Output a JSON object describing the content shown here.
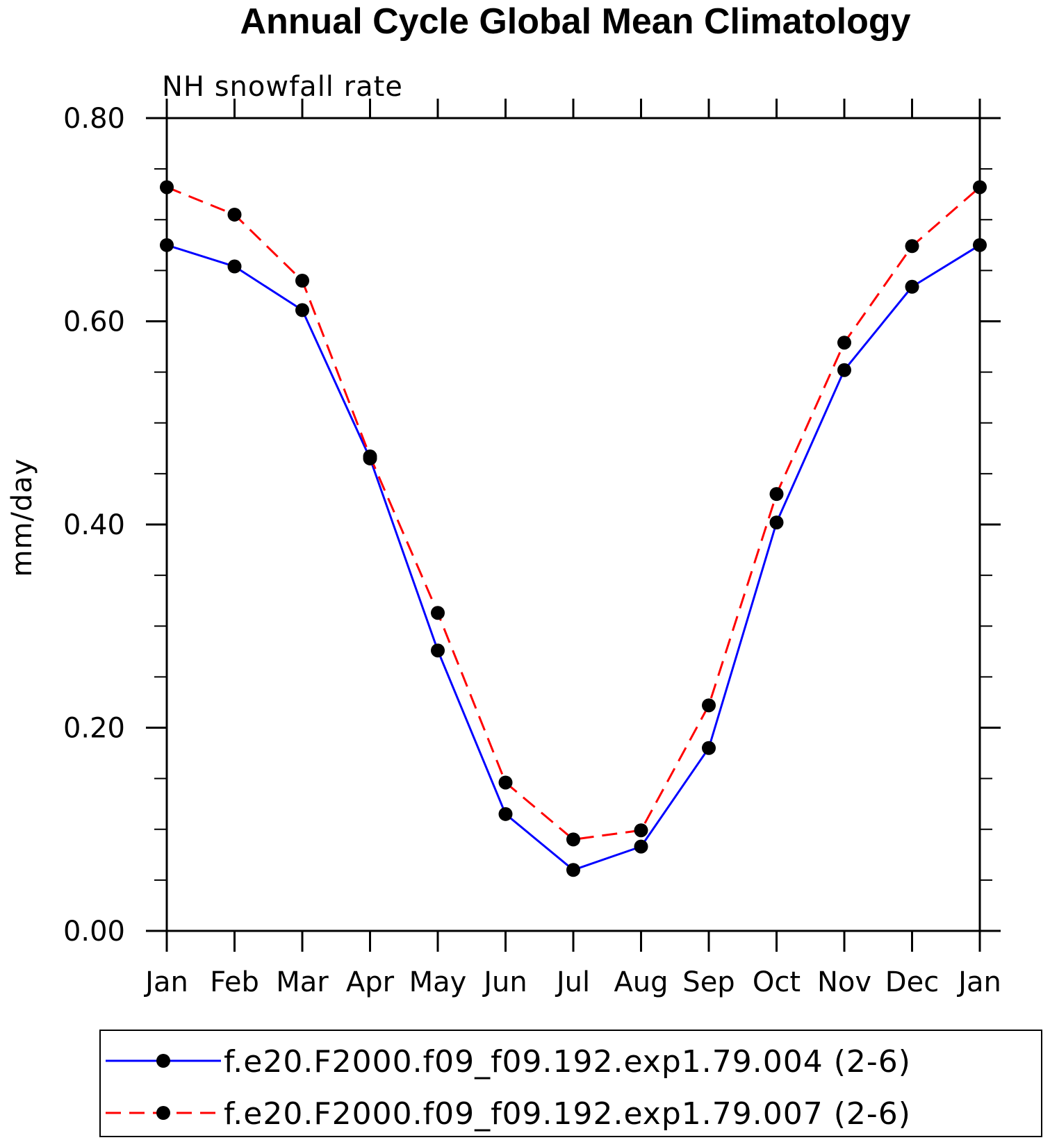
{
  "chart_data": {
    "type": "line",
    "title": "Annual Cycle Global Mean Climatology",
    "subtitle": "NH snowfall rate",
    "xlabel": "",
    "ylabel": "mm/day",
    "categories": [
      "Jan",
      "Feb",
      "Mar",
      "Apr",
      "May",
      "Jun",
      "Jul",
      "Aug",
      "Sep",
      "Oct",
      "Nov",
      "Dec",
      "Jan"
    ],
    "ylim": [
      0,
      0.8
    ],
    "yticks": [
      "0.00",
      "0.20",
      "0.40",
      "0.60",
      "0.80"
    ],
    "ytick_values": [
      0,
      0.2,
      0.4,
      0.6,
      0.8
    ],
    "y_minor_step": 0.05,
    "legend_position": "bottom",
    "series": [
      {
        "name": "f.e20.F2000.f09_f09.192.exp1.79.004 (2-6)",
        "color": "#0000ff",
        "dash": "solid",
        "marker": "filled-circle",
        "values": [
          0.675,
          0.654,
          0.611,
          0.465,
          0.276,
          0.115,
          0.06,
          0.083,
          0.18,
          0.402,
          0.552,
          0.634,
          0.675
        ]
      },
      {
        "name": "f.e20.F2000.f09_f09.192.exp1.79.007 (2-6)",
        "color": "#ff0000",
        "dash": "dashed",
        "marker": "filled-circle",
        "values": [
          0.732,
          0.705,
          0.64,
          0.467,
          0.313,
          0.146,
          0.09,
          0.099,
          0.222,
          0.43,
          0.579,
          0.674,
          0.732
        ]
      }
    ]
  }
}
